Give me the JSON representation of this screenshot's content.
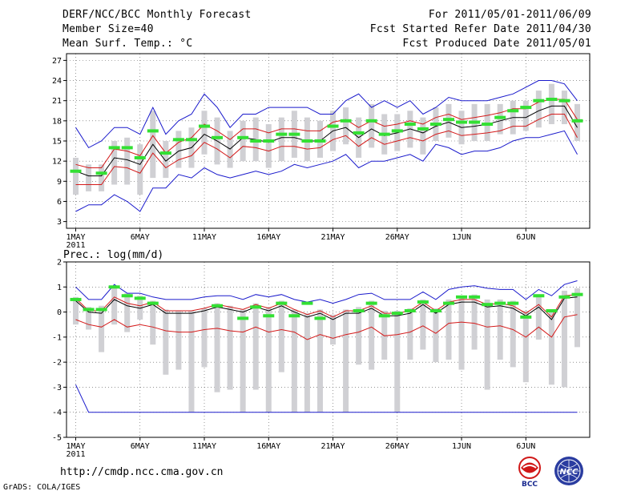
{
  "header": {
    "title": "DERF/NCC/BCC Monthly Forecast",
    "member_size": "Member Size=40",
    "variable": "Mean Surf. Temp.: °C",
    "period": "For 2011/05/01-2011/06/09",
    "refer_date": "Fcst Started Refer Date 2011/04/30",
    "produced_date": "Fcst Produced Date 2011/05/01"
  },
  "footer": {
    "url": "http://cmdp.ncc.cma.gov.cn",
    "credit": "GrADS: COLA/IGES",
    "logo_bcc_text": "BCC",
    "logo_ncc_text": "NCC"
  },
  "colors": {
    "mean": "#000000",
    "spread": "#d41a1a",
    "envelope": "#1a1acc",
    "obs": "#33e033",
    "box": "#d0d0d4"
  },
  "x_labels": [
    "1MAY",
    "6MAY",
    "11MAY",
    "16MAY",
    "21MAY",
    "26MAY",
    "1JUN",
    "6JUN"
  ],
  "x_year": "2011",
  "chart_data": [
    {
      "type": "line",
      "title": "Mean Surf. Temp.: °C",
      "days": 40,
      "ylim": [
        2,
        28
      ],
      "yticks": [
        3,
        6,
        9,
        12,
        15,
        18,
        21,
        24,
        27
      ],
      "series": [
        {
          "name": "ensemble-mean",
          "values": [
            10.5,
            9.8,
            9.8,
            12.5,
            12.2,
            11.5,
            14.5,
            12,
            13.5,
            14,
            16,
            15,
            13.8,
            15.5,
            15.2,
            14.8,
            15.5,
            15.5,
            15,
            15,
            16.5,
            17,
            15.5,
            16.8,
            15.8,
            16.2,
            16.8,
            16.2,
            17.2,
            17.8,
            17,
            17.2,
            17.5,
            18,
            18.5,
            18.5,
            19.5,
            20.2,
            20.2,
            17
          ]
        },
        {
          "name": "upper-spread",
          "values": [
            11.5,
            11,
            11,
            13.8,
            13.5,
            12.8,
            15.8,
            13.2,
            14.8,
            15.5,
            17.5,
            16.5,
            15.2,
            16.8,
            16.8,
            16.2,
            16.8,
            16.8,
            16.5,
            16.5,
            17.8,
            18.2,
            17,
            18,
            17.2,
            17.5,
            18,
            17.5,
            18.5,
            19,
            18.2,
            18.5,
            18.8,
            19.2,
            19.8,
            19.8,
            20.8,
            21.2,
            21.2,
            18.2
          ]
        },
        {
          "name": "lower-spread",
          "values": [
            8.5,
            8.5,
            8.5,
            11.2,
            11,
            10.2,
            13.2,
            11,
            12.2,
            12.8,
            14.8,
            13.8,
            12.5,
            14.2,
            14,
            13.5,
            14.2,
            14.2,
            13.8,
            14,
            15.2,
            15.8,
            14.2,
            15.5,
            14.5,
            15,
            15.5,
            15,
            16,
            16.5,
            15.8,
            16,
            16.2,
            16.5,
            17.2,
            17.2,
            18.2,
            19,
            19,
            15.5
          ]
        },
        {
          "name": "ensemble-max",
          "values": [
            17,
            14,
            15,
            17,
            17,
            16,
            20,
            16,
            18,
            19,
            22,
            20,
            17,
            19,
            19,
            20,
            20,
            20,
            20,
            19,
            19,
            21,
            22,
            20,
            21,
            20,
            21,
            19,
            20,
            21.5,
            21,
            21,
            21,
            21.5,
            22,
            23,
            24,
            24,
            23.5,
            21
          ]
        },
        {
          "name": "ensemble-min",
          "values": [
            4.5,
            5.5,
            5.5,
            7,
            6,
            4.5,
            8,
            8,
            10,
            9.5,
            11,
            10,
            9.5,
            10,
            10.5,
            10,
            10.5,
            11.5,
            11,
            11.5,
            12,
            13,
            11,
            12,
            12,
            12.5,
            13,
            12,
            14.5,
            14,
            13,
            13.5,
            13.5,
            14,
            15,
            15.5,
            15.5,
            16,
            16.5,
            13
          ]
        },
        {
          "name": "observed-mean",
          "values": [
            10.5,
            null,
            10.2,
            14,
            14,
            12.5,
            16.5,
            13.2,
            15.2,
            15.2,
            17.2,
            15.5,
            null,
            15.5,
            15,
            15,
            16,
            16,
            15,
            15,
            17.2,
            18,
            16.2,
            18,
            16,
            16.5,
            17.5,
            16.8,
            17.5,
            18.2,
            17.8,
            17.8,
            17.5,
            18.5,
            19.5,
            20,
            21,
            21.2,
            21,
            18
          ]
        },
        {
          "name": "box-top",
          "values": [
            12.5,
            11.5,
            11.5,
            15,
            15.5,
            14.5,
            19.5,
            15,
            16.5,
            17,
            19.5,
            18.5,
            16.5,
            18,
            18.5,
            17.5,
            18.5,
            19.5,
            18.5,
            18,
            19.5,
            20,
            18.5,
            20.5,
            19,
            19,
            19.5,
            18.5,
            20,
            20.5,
            19.5,
            20.5,
            20.5,
            20.5,
            21,
            21,
            22.5,
            23.5,
            22.5,
            20.5
          ]
        },
        {
          "name": "box-bottom",
          "values": [
            7,
            7.5,
            7.5,
            8.5,
            8.5,
            7,
            9.5,
            9.5,
            11,
            11,
            13,
            11.5,
            11,
            12,
            12,
            11,
            12,
            12.5,
            12,
            12.5,
            13.5,
            14.5,
            12.5,
            14,
            13,
            13.5,
            14,
            13,
            15,
            15.5,
            14.5,
            15,
            15,
            16,
            16,
            16.5,
            17,
            17.5,
            17.5,
            15
          ]
        }
      ]
    },
    {
      "type": "line",
      "title": "Prec.: log(mm/d)",
      "days": 40,
      "ylim": [
        -5,
        2
      ],
      "yticks": [
        -5,
        -4,
        -3,
        -2,
        -1,
        0,
        1,
        2
      ],
      "series": [
        {
          "name": "ensemble-mean",
          "values": [
            0.45,
            0,
            -0.05,
            0.5,
            0.25,
            0.15,
            0.3,
            -0.05,
            -0.05,
            -0.05,
            0.05,
            0.2,
            0.1,
            0,
            0.2,
            0.05,
            0.25,
            0,
            -0.2,
            -0.05,
            -0.3,
            -0.05,
            -0.05,
            0.15,
            -0.15,
            -0.15,
            -0.05,
            0.3,
            -0.05,
            0.3,
            0.4,
            0.4,
            0.2,
            0.25,
            0.15,
            -0.15,
            0.2,
            -0.3,
            0.55,
            0.6
          ]
        },
        {
          "name": "upper-spread",
          "values": [
            0.55,
            0.05,
            0.05,
            0.6,
            0.35,
            0.25,
            0.4,
            0.05,
            0.05,
            0.05,
            0.15,
            0.3,
            0.2,
            0.1,
            0.3,
            0.15,
            0.35,
            0.1,
            -0.1,
            0.05,
            -0.2,
            0.05,
            0.05,
            0.25,
            -0.05,
            -0.05,
            0.05,
            0.4,
            0.05,
            0.4,
            0.5,
            0.5,
            0.3,
            0.35,
            0.25,
            -0.05,
            0.3,
            -0.2,
            0.65,
            0.7
          ]
        },
        {
          "name": "lower-spread",
          "values": [
            -0.3,
            -0.5,
            -0.6,
            -0.3,
            -0.6,
            -0.5,
            -0.6,
            -0.75,
            -0.8,
            -0.8,
            -0.7,
            -0.65,
            -0.75,
            -0.8,
            -0.6,
            -0.8,
            -0.7,
            -0.8,
            -1.1,
            -0.9,
            -1.05,
            -0.9,
            -0.8,
            -0.6,
            -0.95,
            -0.9,
            -0.8,
            -0.55,
            -0.85,
            -0.45,
            -0.4,
            -0.45,
            -0.6,
            -0.55,
            -0.7,
            -1,
            -0.6,
            -1,
            -0.2,
            -0.1
          ]
        },
        {
          "name": "ensemble-max",
          "values": [
            1,
            0.5,
            0.5,
            1.1,
            0.75,
            0.75,
            0.6,
            0.5,
            0.5,
            0.5,
            0.6,
            0.65,
            0.65,
            0.5,
            0.7,
            0.6,
            0.7,
            0.5,
            0.4,
            0.5,
            0.35,
            0.5,
            0.7,
            0.75,
            0.5,
            0.5,
            0.5,
            0.8,
            0.5,
            0.9,
            1,
            1.05,
            0.95,
            0.9,
            0.9,
            0.5,
            0.9,
            0.65,
            1.1,
            1.25
          ]
        },
        {
          "name": "ensemble-min",
          "values": [
            -2.9,
            -4,
            -4,
            -4,
            -4,
            -4,
            -4,
            -4,
            -4,
            -4,
            -4,
            -4,
            -4,
            -4,
            -4,
            -4,
            -4,
            -4,
            -4,
            -4,
            -4,
            -4,
            -4,
            -4,
            -4,
            -4,
            -4,
            -4,
            -4,
            -4,
            -4,
            -4,
            -4,
            -4,
            -4,
            -4,
            -4,
            -4,
            -4,
            -4
          ]
        },
        {
          "name": "observed-mean",
          "values": [
            0.5,
            0.1,
            0.1,
            1,
            0.65,
            0.55,
            0.35,
            null,
            null,
            null,
            null,
            0.25,
            null,
            -0.25,
            0.2,
            -0.15,
            0.35,
            -0.15,
            0.35,
            -0.25,
            null,
            null,
            0.05,
            0.35,
            -0.15,
            -0.05,
            0.05,
            0.4,
            0.05,
            0.35,
            0.6,
            0.6,
            0.3,
            0.35,
            0.35,
            -0.2,
            0.65,
            0.05,
            0.6,
            0.7
          ]
        },
        {
          "name": "box-top",
          "values": [
            0.6,
            0.2,
            0.25,
            1,
            0.75,
            0.65,
            0.45,
            0.1,
            0.05,
            0.05,
            0.15,
            0.35,
            0.25,
            0.1,
            0.35,
            0.2,
            0.45,
            0.1,
            -0.05,
            0.1,
            -0.1,
            0.1,
            0.2,
            0.45,
            0.05,
            0.05,
            0.15,
            0.5,
            0.15,
            0.5,
            0.65,
            0.7,
            0.5,
            0.5,
            0.45,
            0.05,
            0.6,
            0.05,
            0.85,
            0.95
          ]
        },
        {
          "name": "box-bottom",
          "values": [
            -0.5,
            -0.7,
            -1.6,
            -0.5,
            -0.8,
            -0.3,
            -1.3,
            -2.5,
            -2.3,
            -4,
            -2.2,
            -3.2,
            -3.1,
            -4,
            -3.1,
            -4,
            -2.4,
            -4,
            -4,
            -4,
            -1.3,
            -4,
            -2.1,
            -2.3,
            -1.9,
            -4,
            -1.9,
            -1.5,
            -2,
            -1.9,
            -2.3,
            -1.5,
            -3.1,
            -1.9,
            -2.2,
            -2.8,
            -1.1,
            -2.9,
            -3,
            -1.4
          ]
        }
      ]
    }
  ]
}
